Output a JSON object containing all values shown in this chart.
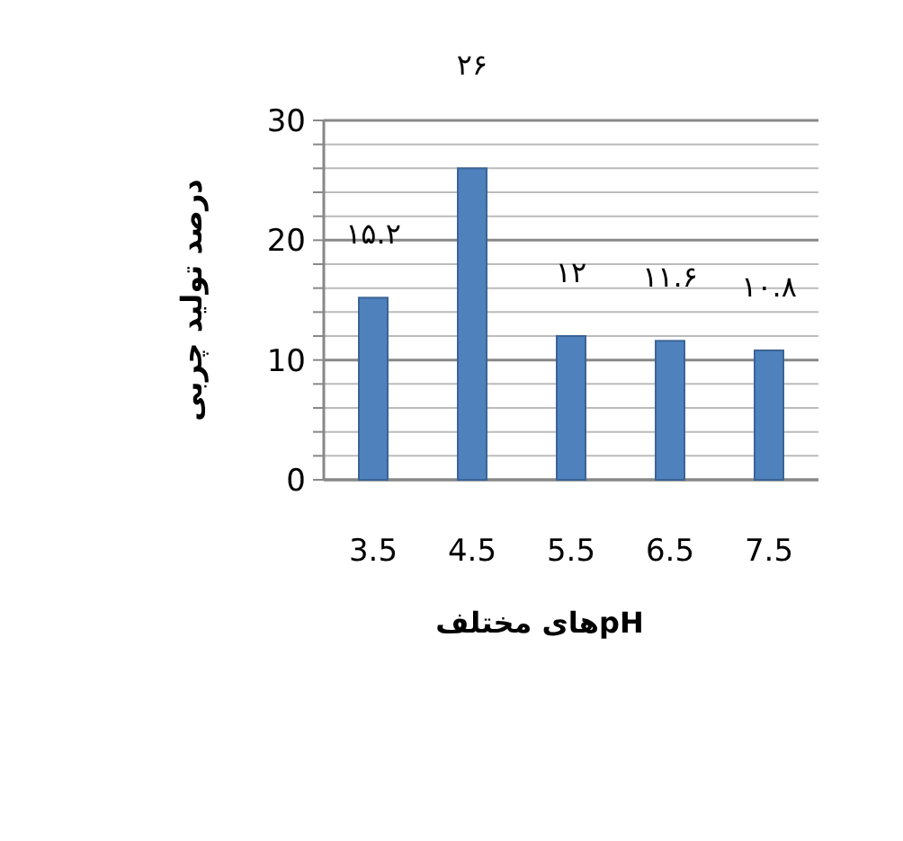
{
  "chart_data": {
    "type": "bar",
    "ylabel": "درصد تولید چربی",
    "xlabel": "pHهای مختلف",
    "categories": [
      "3.5",
      "4.5",
      "5.5",
      "6.5",
      "7.5"
    ],
    "values": [
      15.2,
      26,
      12,
      11.6,
      10.8
    ],
    "value_labels": [
      "۱۵.۲",
      "۲۶",
      "۱۲",
      "۱۱.۶",
      "۱۰.۸"
    ],
    "color": "#4f81bd",
    "ylim": [
      0,
      30
    ],
    "yticks": [
      0,
      {
        "value": 2,
        "label": null
      },
      {
        "value": 4,
        "label": null
      },
      {
        "value": 6,
        "label": null
      },
      {
        "value": 8,
        "label": null
      },
      10,
      {
        "value": 12,
        "label": null
      },
      {
        "value": 14,
        "label": null
      },
      {
        "value": 16,
        "label": null
      },
      {
        "value": 18,
        "label": null
      },
      20,
      {
        "value": 22,
        "label": null
      },
      {
        "value": 24,
        "label": null
      },
      {
        "value": 26,
        "label": null
      },
      {
        "value": 28,
        "label": null
      },
      30
    ],
    "grid": "y"
  }
}
